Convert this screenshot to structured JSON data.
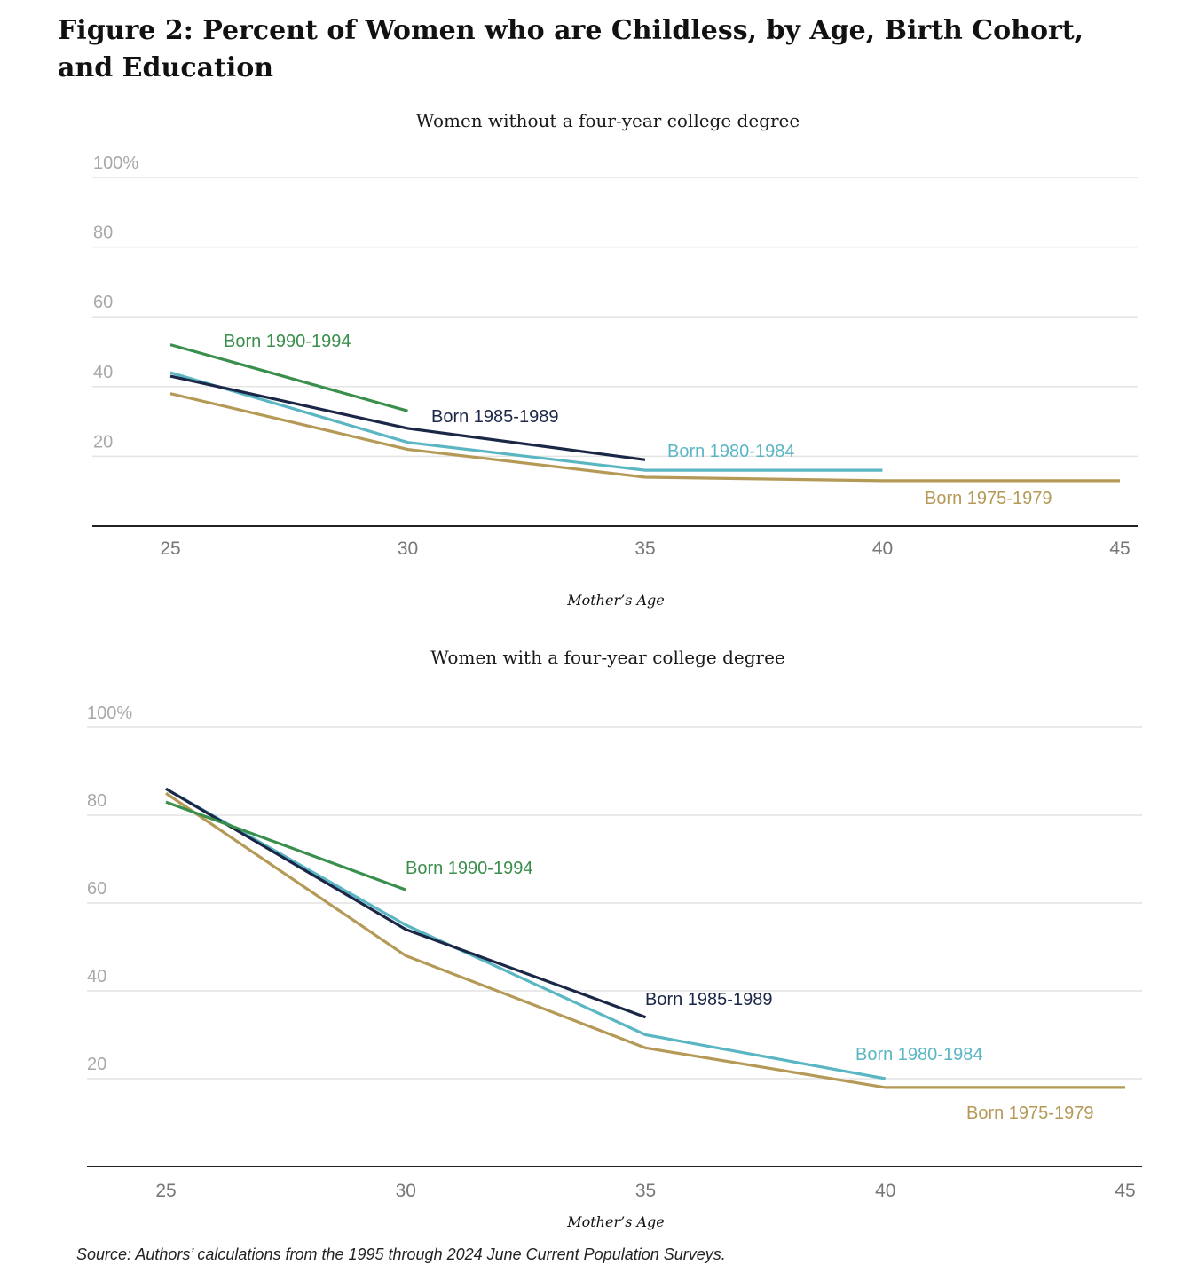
{
  "title": "Figure 2: Percent of Women who are Childless, by Age, Birth Cohort, and Education",
  "source": "Source: Authors’ calculations from the 1995 through 2024 June Current Population Surveys.",
  "colors": {
    "born_1990_1994": "#3a8f4c",
    "born_1985_1989": "#1b2747",
    "born_1980_1984": "#5bb6c3",
    "born_1975_1979": "#b59a57",
    "grid": "#e4e4e4",
    "axis": "#222222",
    "tick_text": "#a8a8a8"
  },
  "chart_data": [
    {
      "type": "line",
      "title": "Women without a four-year college degree",
      "xlabel": "Mother’s Age",
      "ylabel": "",
      "x": [
        25,
        30,
        35,
        40,
        45
      ],
      "xlim": [
        25,
        45
      ],
      "ylim": [
        0,
        100
      ],
      "yticks": [
        20,
        40,
        60,
        80,
        100
      ],
      "ytick_labels": [
        "20",
        "40",
        "60",
        "80",
        "100%"
      ],
      "xtick_labels": [
        "25",
        "30",
        "35",
        "40",
        "45"
      ],
      "grid": true,
      "legend": "inline-labels",
      "series": [
        {
          "name": "Born 1990-1994",
          "key": "born_1990_1994",
          "x": [
            25,
            30
          ],
          "values": [
            52,
            33
          ]
        },
        {
          "name": "Born 1985-1989",
          "key": "born_1985_1989",
          "x": [
            25,
            30,
            35
          ],
          "values": [
            43,
            28,
            19
          ]
        },
        {
          "name": "Born 1980-1984",
          "key": "born_1980_1984",
          "x": [
            25,
            30,
            35,
            40
          ],
          "values": [
            44,
            24,
            16,
            16
          ]
        },
        {
          "name": "Born 1975-1979",
          "key": "born_1975_1979",
          "x": [
            25,
            30,
            35,
            40,
            45
          ],
          "values": [
            38,
            22,
            14,
            13,
            13
          ]
        }
      ]
    },
    {
      "type": "line",
      "title": "Women with a four-year college degree",
      "xlabel": "Mother’s Age",
      "ylabel": "",
      "x": [
        25,
        30,
        35,
        40,
        45
      ],
      "xlim": [
        25,
        45
      ],
      "ylim": [
        0,
        100
      ],
      "yticks": [
        20,
        40,
        60,
        80,
        100
      ],
      "ytick_labels": [
        "20",
        "40",
        "60",
        "80",
        "100%"
      ],
      "xtick_labels": [
        "25",
        "30",
        "35",
        "40",
        "45"
      ],
      "grid": true,
      "legend": "inline-labels",
      "series": [
        {
          "name": "Born 1990-1994",
          "key": "born_1990_1994",
          "x": [
            25,
            30
          ],
          "values": [
            83,
            63
          ]
        },
        {
          "name": "Born 1985-1989",
          "key": "born_1985_1989",
          "x": [
            25,
            30,
            35
          ],
          "values": [
            86,
            54,
            34
          ]
        },
        {
          "name": "Born 1980-1984",
          "key": "born_1980_1984",
          "x": [
            25,
            30,
            35,
            40
          ],
          "values": [
            86,
            55,
            30,
            20
          ]
        },
        {
          "name": "Born 1975-1979",
          "key": "born_1975_1979",
          "x": [
            25,
            30,
            35,
            40,
            45
          ],
          "values": [
            85,
            48,
            27,
            18,
            18
          ]
        }
      ]
    }
  ]
}
